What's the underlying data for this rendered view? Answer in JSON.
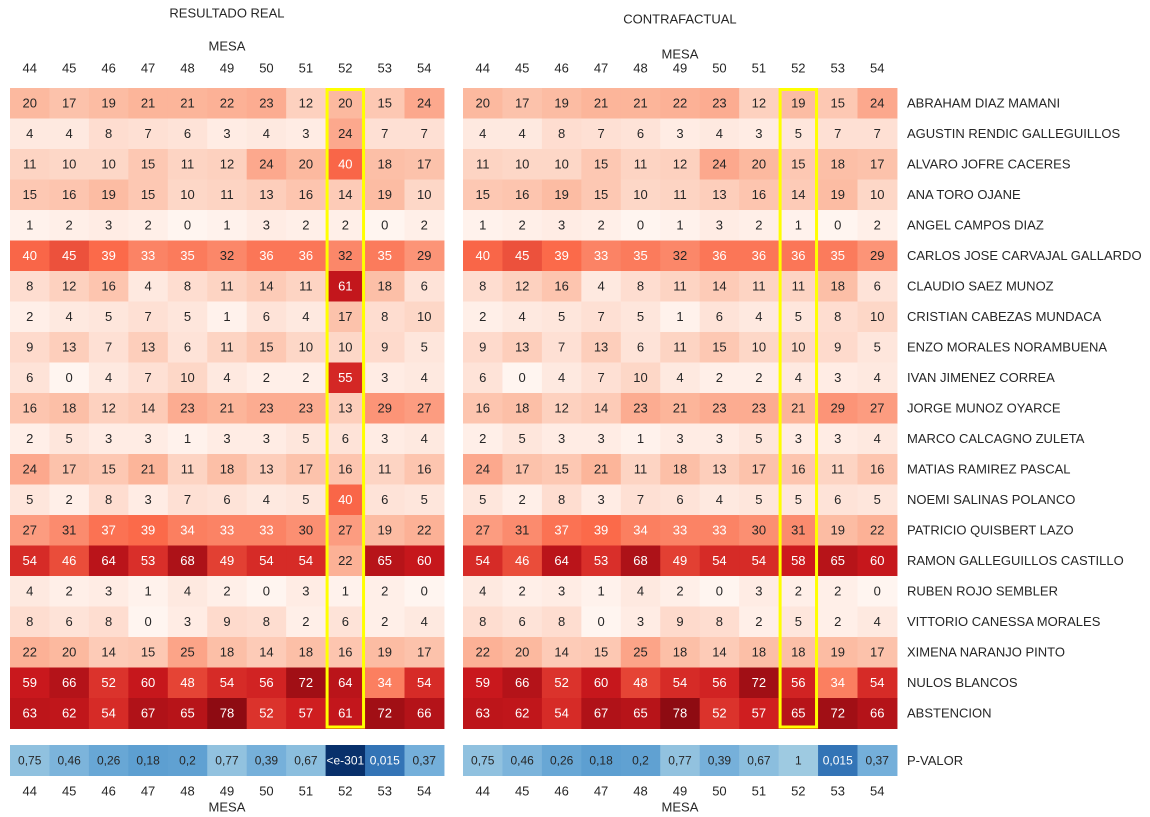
{
  "chart_data": {
    "type": "heatmap",
    "colormap": "Reds",
    "pvalue_colormap": "Blues",
    "highlight_column": 52,
    "highlight_color": "#ffff00",
    "pvalue_label": "P-VALOR",
    "categories": [
      44,
      45,
      46,
      47,
      48,
      49,
      50,
      51,
      52,
      53,
      54
    ],
    "rows": [
      "ABRAHAM DIAZ MAMANI",
      "AGUSTIN RENDIC GALLEGUILLOS",
      "ALVARO JOFRE CACERES",
      "ANA TORO OJANE",
      "ANGEL CAMPOS DIAZ",
      "CARLOS JOSE CARVAJAL GALLARDO",
      "CLAUDIO SAEZ MUNOZ",
      "CRISTIAN CABEZAS MUNDACA",
      "ENZO MORALES NORAMBUENA",
      "IVAN JIMENEZ CORREA",
      "JORGE MUNOZ OYARCE",
      "MARCO CALCAGNO ZULETA",
      "MATIAS RAMIREZ PASCAL",
      "NOEMI SALINAS POLANCO",
      "PATRICIO QUISBERT LAZO",
      "RAMON GALLEGUILLOS CASTILLO",
      "RUBEN ROJO SEMBLER",
      "VITTORIO CANESSA MORALES",
      "XIMENA NARANJO PINTO",
      "NULOS BLANCOS",
      "ABSTENCION"
    ],
    "panels": [
      {
        "title": "RESULTADO REAL",
        "xlabel": "MESA",
        "values": [
          [
            20,
            17,
            19,
            21,
            21,
            22,
            23,
            12,
            20,
            15,
            24
          ],
          [
            4,
            4,
            8,
            7,
            6,
            3,
            4,
            3,
            24,
            7,
            7
          ],
          [
            11,
            10,
            10,
            15,
            11,
            12,
            24,
            20,
            40,
            18,
            17
          ],
          [
            15,
            16,
            19,
            15,
            10,
            11,
            13,
            16,
            14,
            19,
            10
          ],
          [
            1,
            2,
            3,
            2,
            0,
            1,
            3,
            2,
            2,
            0,
            2
          ],
          [
            40,
            45,
            39,
            33,
            35,
            32,
            36,
            36,
            32,
            35,
            29
          ],
          [
            8,
            12,
            16,
            4,
            8,
            11,
            14,
            11,
            61,
            18,
            6
          ],
          [
            2,
            4,
            5,
            7,
            5,
            1,
            6,
            4,
            17,
            8,
            10
          ],
          [
            9,
            13,
            7,
            13,
            6,
            11,
            15,
            10,
            10,
            9,
            5
          ],
          [
            6,
            0,
            4,
            7,
            10,
            4,
            2,
            2,
            55,
            3,
            4
          ],
          [
            16,
            18,
            12,
            14,
            23,
            21,
            23,
            23,
            13,
            29,
            27
          ],
          [
            2,
            5,
            3,
            3,
            1,
            3,
            3,
            5,
            6,
            3,
            4
          ],
          [
            24,
            17,
            15,
            21,
            11,
            18,
            13,
            17,
            16,
            11,
            16
          ],
          [
            5,
            2,
            8,
            3,
            7,
            6,
            4,
            5,
            40,
            6,
            5
          ],
          [
            27,
            31,
            37,
            39,
            34,
            33,
            33,
            30,
            27,
            19,
            22
          ],
          [
            54,
            46,
            64,
            53,
            68,
            49,
            54,
            54,
            22,
            65,
            60
          ],
          [
            4,
            2,
            3,
            1,
            4,
            2,
            0,
            3,
            1,
            2,
            0
          ],
          [
            8,
            6,
            8,
            0,
            3,
            9,
            8,
            2,
            6,
            2,
            4
          ],
          [
            22,
            20,
            14,
            15,
            25,
            18,
            14,
            18,
            16,
            19,
            17
          ],
          [
            59,
            66,
            52,
            60,
            48,
            54,
            56,
            72,
            64,
            34,
            54
          ],
          [
            63,
            62,
            54,
            67,
            65,
            78,
            52,
            57,
            61,
            72,
            66
          ]
        ],
        "pvalues": [
          0.75,
          0.46,
          0.26,
          0.18,
          0.2,
          0.77,
          0.39,
          0.67,
          1e-301,
          0.015,
          0.37
        ],
        "pvalue_labels": [
          "0,75",
          "0,46",
          "0,26",
          "0,18",
          "0,2",
          "0,77",
          "0,39",
          "0,67",
          "<e-301",
          "0,015",
          "0,37"
        ]
      },
      {
        "title": "CONTRAFACTUAL",
        "xlabel": "MESA",
        "values": [
          [
            20,
            17,
            19,
            21,
            21,
            22,
            23,
            12,
            19,
            15,
            24
          ],
          [
            4,
            4,
            8,
            7,
            6,
            3,
            4,
            3,
            5,
            7,
            7
          ],
          [
            11,
            10,
            10,
            15,
            11,
            12,
            24,
            20,
            15,
            18,
            17
          ],
          [
            15,
            16,
            19,
            15,
            10,
            11,
            13,
            16,
            14,
            19,
            10
          ],
          [
            1,
            2,
            3,
            2,
            0,
            1,
            3,
            2,
            1,
            0,
            2
          ],
          [
            40,
            45,
            39,
            33,
            35,
            32,
            36,
            36,
            36,
            35,
            29
          ],
          [
            8,
            12,
            16,
            4,
            8,
            11,
            14,
            11,
            11,
            18,
            6
          ],
          [
            2,
            4,
            5,
            7,
            5,
            1,
            6,
            4,
            5,
            8,
            10
          ],
          [
            9,
            13,
            7,
            13,
            6,
            11,
            15,
            10,
            10,
            9,
            5
          ],
          [
            6,
            0,
            4,
            7,
            10,
            4,
            2,
            2,
            4,
            3,
            4
          ],
          [
            16,
            18,
            12,
            14,
            23,
            21,
            23,
            23,
            21,
            29,
            27
          ],
          [
            2,
            5,
            3,
            3,
            1,
            3,
            3,
            5,
            3,
            3,
            4
          ],
          [
            24,
            17,
            15,
            21,
            11,
            18,
            13,
            17,
            16,
            11,
            16
          ],
          [
            5,
            2,
            8,
            3,
            7,
            6,
            4,
            5,
            5,
            6,
            5
          ],
          [
            27,
            31,
            37,
            39,
            34,
            33,
            33,
            30,
            31,
            19,
            22
          ],
          [
            54,
            46,
            64,
            53,
            68,
            49,
            54,
            54,
            58,
            65,
            60
          ],
          [
            4,
            2,
            3,
            1,
            4,
            2,
            0,
            3,
            2,
            2,
            0
          ],
          [
            8,
            6,
            8,
            0,
            3,
            9,
            8,
            2,
            5,
            2,
            4
          ],
          [
            22,
            20,
            14,
            15,
            25,
            18,
            14,
            18,
            18,
            19,
            17
          ],
          [
            59,
            66,
            52,
            60,
            48,
            54,
            56,
            72,
            56,
            34,
            54
          ],
          [
            63,
            62,
            54,
            67,
            65,
            78,
            52,
            57,
            65,
            72,
            66
          ]
        ],
        "pvalues": [
          0.75,
          0.46,
          0.26,
          0.18,
          0.2,
          0.77,
          0.39,
          0.67,
          1,
          0.015,
          0.37
        ],
        "pvalue_labels": [
          "0,75",
          "0,46",
          "0,26",
          "0,18",
          "0,2",
          "0,77",
          "0,39",
          "0,67",
          "1",
          "0,015",
          "0,37"
        ]
      }
    ]
  }
}
